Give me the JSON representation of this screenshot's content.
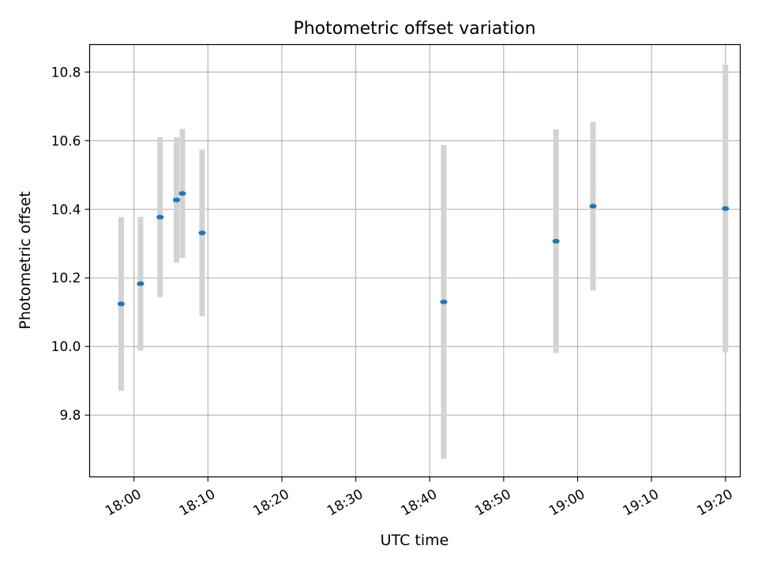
{
  "chart_data": {
    "type": "scatter",
    "title": "Photometric offset variation",
    "xlabel": "UTC time",
    "ylabel": "Photometric offset",
    "x_ticks": [
      "18:00",
      "18:10",
      "18:20",
      "18:30",
      "18:40",
      "18:50",
      "19:00",
      "19:10",
      "19:20"
    ],
    "y_ticks": [
      "9.8",
      "10.0",
      "10.2",
      "10.4",
      "10.6",
      "10.8"
    ],
    "xlim": [
      "17:54",
      "19:22"
    ],
    "ylim": [
      9.62,
      10.88
    ],
    "grid": true,
    "series": [
      {
        "points": [
          {
            "x": "17:58:16",
            "y": 10.124,
            "err": 0.253
          },
          {
            "x": "18:00:53",
            "y": 10.183,
            "err": 0.195
          },
          {
            "x": "18:03:32",
            "y": 10.377,
            "err": 0.233
          },
          {
            "x": "18:05:45",
            "y": 10.427,
            "err": 0.183
          },
          {
            "x": "18:06:33",
            "y": 10.446,
            "err": 0.188
          },
          {
            "x": "18:09:13",
            "y": 10.331,
            "err": 0.243
          },
          {
            "x": "18:41:54",
            "y": 10.13,
            "err": 0.457
          },
          {
            "x": "18:57:05",
            "y": 10.307,
            "err": 0.326
          },
          {
            "x": "19:02:05",
            "y": 10.409,
            "err": 0.246
          },
          {
            "x": "19:20:00",
            "y": 10.402,
            "err": 0.419
          }
        ]
      }
    ],
    "colors": {
      "point": "#1f77b4",
      "errorbar": "#d3d3d3",
      "grid": "#b0b0b0"
    }
  }
}
